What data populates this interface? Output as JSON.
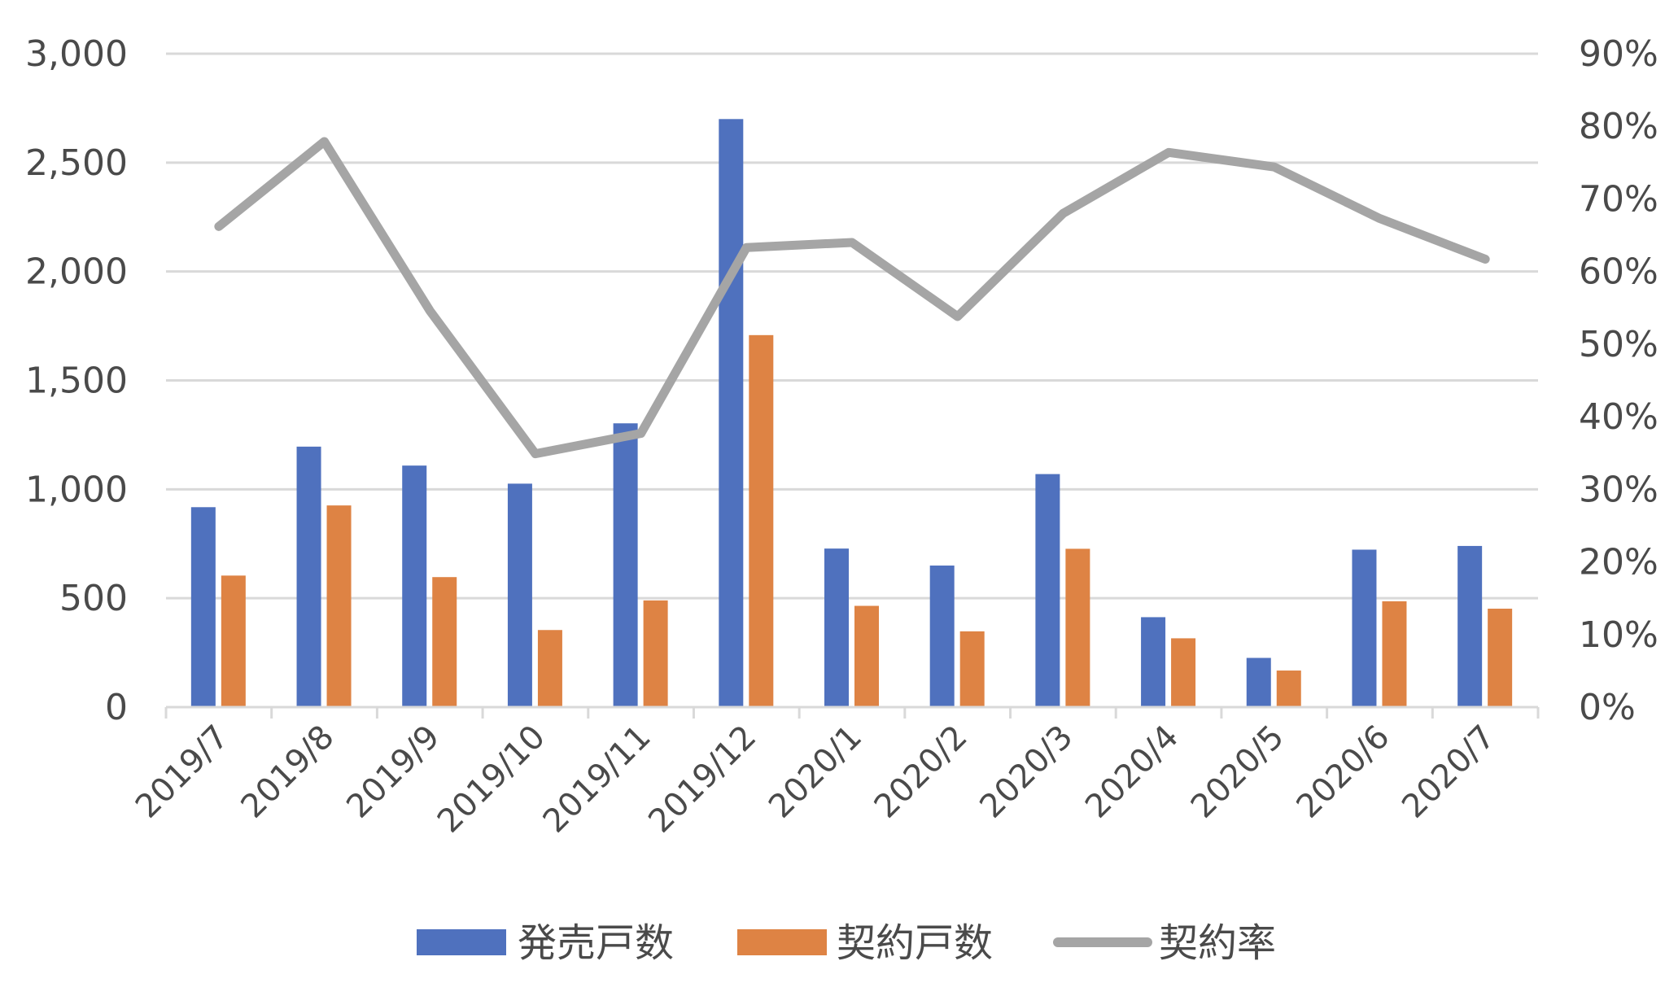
{
  "chart_data": {
    "type": "bar",
    "categories": [
      "2019/7",
      "2019/8",
      "2019/9",
      "2019/10",
      "2019/11",
      "2019/12",
      "2020/1",
      "2020/2",
      "2020/3",
      "2020/4",
      "2020/5",
      "2020/6",
      "2020/7"
    ],
    "series": [
      {
        "name": "発売戸数",
        "type": "bar",
        "axis": "left",
        "color": "#4f71be",
        "values": [
          918,
          1196,
          1109,
          1026,
          1303,
          2700,
          728,
          650,
          1070,
          413,
          226,
          723,
          740
        ]
      },
      {
        "name": "契約戸数",
        "type": "bar",
        "axis": "left",
        "color": "#de8344",
        "values": [
          604,
          926,
          597,
          354,
          490,
          1708,
          465,
          348,
          727,
          316,
          168,
          486,
          452
        ]
      },
      {
        "name": "契約率",
        "type": "line",
        "axis": "right",
        "color": "#a5a5a5",
        "values": [
          0.662,
          0.779,
          0.546,
          0.349,
          0.377,
          0.633,
          0.64,
          0.538,
          0.68,
          0.764,
          0.744,
          0.673,
          0.617
        ]
      }
    ],
    "y_left": {
      "min": 0,
      "max": 3000,
      "step": 500,
      "tick_labels": [
        "0",
        "500",
        "1,000",
        "1,500",
        "2,000",
        "2,500",
        "3,000"
      ]
    },
    "y_right": {
      "min": 0,
      "max": 0.9,
      "step": 0.1,
      "tick_labels": [
        "0%",
        "10%",
        "20%",
        "30%",
        "40%",
        "50%",
        "60%",
        "70%",
        "80%",
        "90%"
      ]
    },
    "grid": true,
    "legend_position": "bottom",
    "title": ""
  }
}
